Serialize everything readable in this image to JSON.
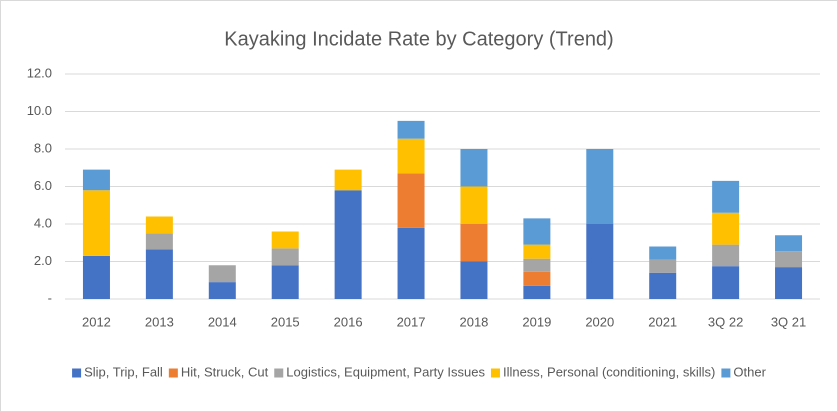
{
  "chart_data": {
    "type": "stacked_bar",
    "title": "Kayaking Incidate Rate by Category (Trend)",
    "categories": [
      "2012",
      "2013",
      "2014",
      "2015",
      "2016",
      "2017",
      "2018",
      "2019",
      "2020",
      "2021",
      "3Q 22",
      "3Q 21"
    ],
    "series": [
      {
        "name": "Slip, Trip, Fall",
        "color": "#4472c4",
        "values": [
          2.3,
          2.65,
          0.9,
          1.8,
          5.8,
          3.8,
          2.0,
          0.7,
          4.0,
          1.4,
          1.75,
          1.7
        ]
      },
      {
        "name": "Hit, Struck, Cut",
        "color": "#ed7d31",
        "values": [
          0,
          0,
          0,
          0,
          0,
          2.9,
          2.0,
          0.75,
          0,
          0,
          0,
          0
        ]
      },
      {
        "name": "Logistics, Equipment, Party Issues",
        "color": "#a5a5a5",
        "values": [
          0,
          0.85,
          0.9,
          0.9,
          0,
          0,
          0,
          0.7,
          0,
          0.7,
          1.15,
          0.85
        ]
      },
      {
        "name": "Illness, Personal (conditioning, skills)",
        "color": "#ffc000",
        "values": [
          3.5,
          0.9,
          0,
          0.9,
          1.1,
          1.85,
          2.0,
          0.75,
          0,
          0,
          1.7,
          0
        ]
      },
      {
        "name": "Other",
        "color": "#5b9bd5",
        "values": [
          1.1,
          0,
          0,
          0,
          0,
          0.95,
          2.0,
          1.4,
          4.0,
          0.7,
          1.7,
          0.85
        ]
      }
    ],
    "ylim": [
      0,
      12
    ],
    "yticks": [
      {
        "value": 0,
        "label": "-"
      },
      {
        "value": 2,
        "label": "2.0"
      },
      {
        "value": 4,
        "label": "4.0"
      },
      {
        "value": 6,
        "label": "6.0"
      },
      {
        "value": 8,
        "label": "8.0"
      },
      {
        "value": 10,
        "label": "10.0"
      },
      {
        "value": 12,
        "label": "12.0"
      }
    ],
    "grid": true,
    "legend": "bottom"
  }
}
